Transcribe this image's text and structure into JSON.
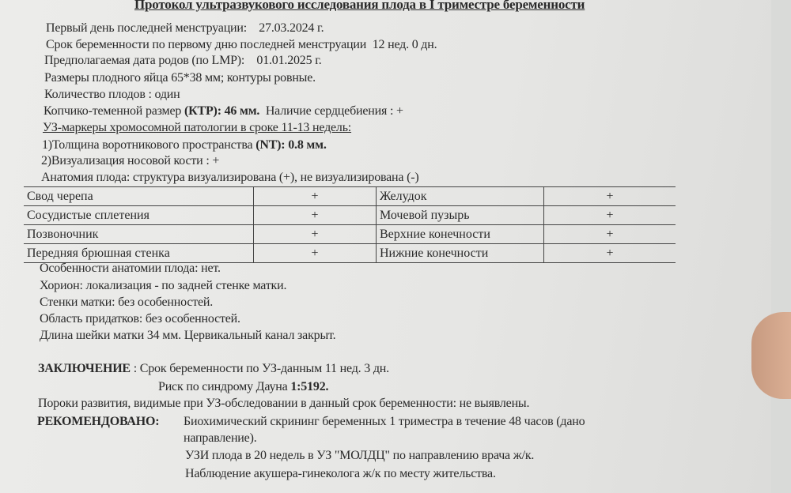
{
  "title": "Протокол ультразвукового исследования плода в I триместре беременности",
  "lines": {
    "lmp_label": "Первый день последней менструации:",
    "lmp_value": "27.03.2024 г.",
    "ga_label": "Срок беременности по первому дню последней менструации",
    "ga_value": "12  нед.  0  дн.",
    "edd_label": "Предполагаемая дата родов (по LMP):",
    "edd_value": "01.01.2025 г.",
    "sac": "Размеры плодного яйца  65*38 мм; контуры ровные.",
    "count": "Количество плодов :  один",
    "crl_label": "Копчико-теменной размер",
    "crl_abbr": "(КТР):  46 мм.",
    "heart": "Наличие сердцебиения :    +",
    "markers": "УЗ-маркеры хромосомной патологии в сроке 11-13 недель:",
    "nt_label": "1)Толщина воротникового пространства",
    "nt_value": "(NT): 0.8  мм.",
    "nasal": "2)Визуализация носовой кости :  +",
    "anatomy": "Анатомия плода: структура визуализирована (+),  не визуализирована (-)"
  },
  "table": [
    [
      "Свод черепа",
      "+",
      "Желудок",
      "+"
    ],
    [
      "Сосудистые сплетения",
      "+",
      "Мочевой пузырь",
      "+"
    ],
    [
      "Позвоночник",
      "+",
      "Верхние конечности",
      "+"
    ],
    [
      "Передняя брюшная стенка",
      "+",
      "Нижние конечности",
      "+"
    ]
  ],
  "after": [
    "Особенности анатомии плода:  нет.",
    "Хорион: локализация - по задней стенке матки.",
    "Стенки матки: без особенностей.",
    "Область придатков: без особенностей.",
    "Длина шейки матки  34  мм. Цервикальный канал закрыт."
  ],
  "conclusion": {
    "label": "ЗАКЛЮЧЕНИЕ",
    "text": ": Срок беременности по УЗ-данным  11 нед. 3 дн.",
    "risk_label": "Риск по синдрому Дауна",
    "risk_value": "1:5192.",
    "defects": "Пороки развития, видимые при УЗ-обследовании в данный срок беременности: не выявлены."
  },
  "recommend": {
    "label": "РЕКОМЕНДОВАНО:",
    "items": [
      "Биохимический скрининг беременных 1 триместра в течение 48 часов (дано",
      "направление).",
      "УЗИ плода в 20 недель в УЗ \"МОЛДЦ\" по направлению врача ж/к.",
      "Наблюдение акушера-гинеколога ж/к по месту жительства."
    ]
  }
}
